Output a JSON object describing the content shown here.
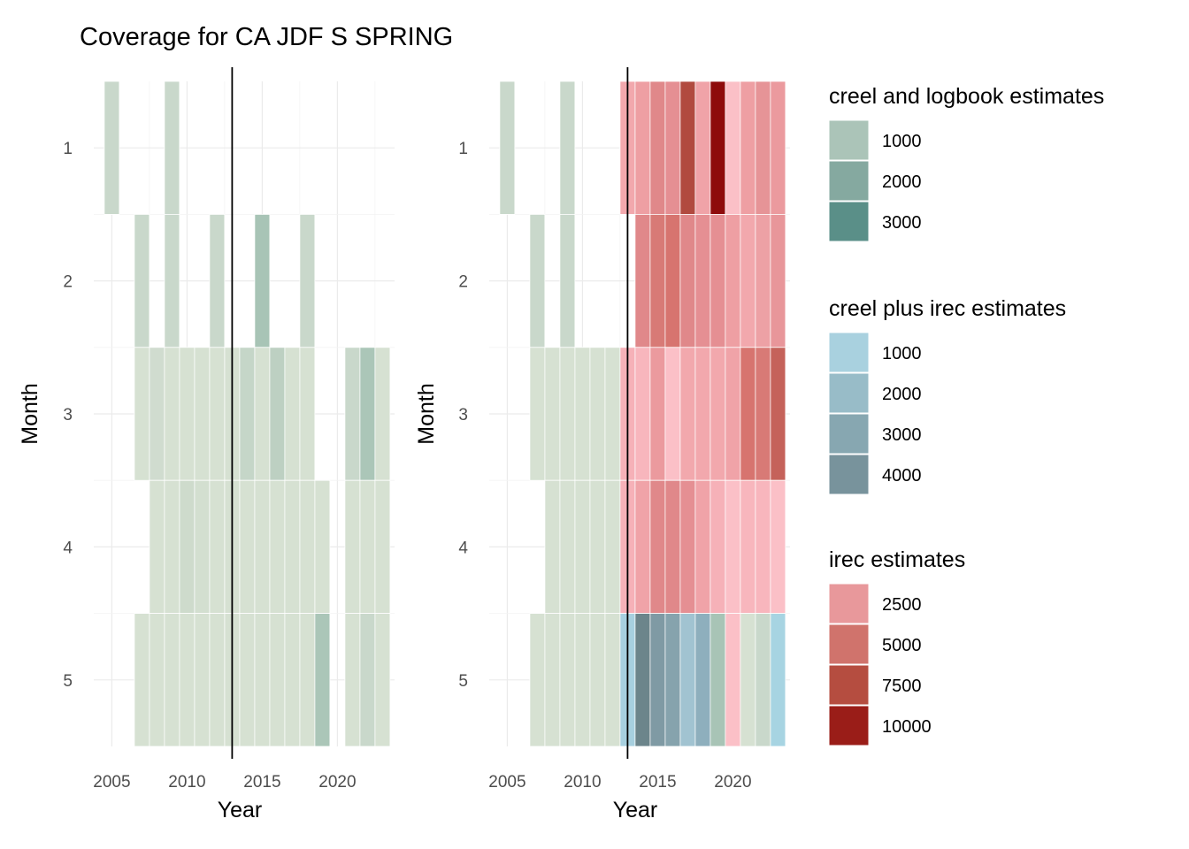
{
  "title": "Coverage for CA JDF S SPRING",
  "chart_data": [
    {
      "type": "heatmap",
      "xlabel": "Year",
      "ylabel": "Month",
      "x_ticks": [
        2005,
        2010,
        2015,
        2020
      ],
      "y_ticks": [
        1,
        2,
        3,
        4,
        5
      ],
      "xlim": [
        2003.8,
        2023.8
      ],
      "ylim": [
        0.5,
        5.5
      ],
      "grid": true,
      "vline": 2013,
      "tiles": [
        {
          "year": 2005,
          "month": 1,
          "color": "#c9d8cb"
        },
        {
          "year": 2009,
          "month": 1,
          "color": "#c9d8cb"
        },
        {
          "year": 2007,
          "month": 2,
          "color": "#c9d8cb"
        },
        {
          "year": 2009,
          "month": 2,
          "color": "#c9d8cb"
        },
        {
          "year": 2012,
          "month": 2,
          "color": "#c9d8cb"
        },
        {
          "year": 2015,
          "month": 2,
          "color": "#a8c4b6"
        },
        {
          "year": 2018,
          "month": 2,
          "color": "#c9d8cb"
        },
        {
          "year": 2007,
          "month": 3,
          "color": "#d6e1d2"
        },
        {
          "year": 2008,
          "month": 3,
          "color": "#d0dccf"
        },
        {
          "year": 2009,
          "month": 3,
          "color": "#d6e1d2"
        },
        {
          "year": 2010,
          "month": 3,
          "color": "#d6e1d2"
        },
        {
          "year": 2011,
          "month": 3,
          "color": "#d6e1d2"
        },
        {
          "year": 2012,
          "month": 3,
          "color": "#d6e1d2"
        },
        {
          "year": 2013,
          "month": 3,
          "color": "#d6e1d2"
        },
        {
          "year": 2014,
          "month": 3,
          "color": "#c5d6c8"
        },
        {
          "year": 2015,
          "month": 3,
          "color": "#d6e1d2"
        },
        {
          "year": 2016,
          "month": 3,
          "color": "#bdd0c2"
        },
        {
          "year": 2017,
          "month": 3,
          "color": "#d6e1d2"
        },
        {
          "year": 2018,
          "month": 3,
          "color": "#d6e1d2"
        },
        {
          "year": 2021,
          "month": 3,
          "color": "#c9d8cb"
        },
        {
          "year": 2022,
          "month": 3,
          "color": "#abc6b8"
        },
        {
          "year": 2023,
          "month": 3,
          "color": "#d6e1d2"
        },
        {
          "year": 2008,
          "month": 4,
          "color": "#d6e1d2"
        },
        {
          "year": 2009,
          "month": 4,
          "color": "#d6e1d2"
        },
        {
          "year": 2010,
          "month": 4,
          "color": "#cedbcc"
        },
        {
          "year": 2011,
          "month": 4,
          "color": "#d3dfd0"
        },
        {
          "year": 2012,
          "month": 4,
          "color": "#d6e1d2"
        },
        {
          "year": 2013,
          "month": 4,
          "color": "#d6e1d2"
        },
        {
          "year": 2014,
          "month": 4,
          "color": "#d6e1d2"
        },
        {
          "year": 2015,
          "month": 4,
          "color": "#d6e1d2"
        },
        {
          "year": 2016,
          "month": 4,
          "color": "#d6e1d2"
        },
        {
          "year": 2017,
          "month": 4,
          "color": "#d6e1d2"
        },
        {
          "year": 2018,
          "month": 4,
          "color": "#d6e1d2"
        },
        {
          "year": 2019,
          "month": 4,
          "color": "#d6e1d2"
        },
        {
          "year": 2021,
          "month": 4,
          "color": "#d6e1d2"
        },
        {
          "year": 2022,
          "month": 4,
          "color": "#d6e1d2"
        },
        {
          "year": 2023,
          "month": 4,
          "color": "#d6e1d2"
        },
        {
          "year": 2007,
          "month": 5,
          "color": "#d6e1d2"
        },
        {
          "year": 2008,
          "month": 5,
          "color": "#d6e1d2"
        },
        {
          "year": 2009,
          "month": 5,
          "color": "#d6e1d2"
        },
        {
          "year": 2010,
          "month": 5,
          "color": "#d6e1d2"
        },
        {
          "year": 2011,
          "month": 5,
          "color": "#d6e1d2"
        },
        {
          "year": 2012,
          "month": 5,
          "color": "#d6e1d2"
        },
        {
          "year": 2013,
          "month": 5,
          "color": "#d6e1d2"
        },
        {
          "year": 2014,
          "month": 5,
          "color": "#d6e1d2"
        },
        {
          "year": 2015,
          "month": 5,
          "color": "#d6e1d2"
        },
        {
          "year": 2016,
          "month": 5,
          "color": "#d6e1d2"
        },
        {
          "year": 2017,
          "month": 5,
          "color": "#d6e1d2"
        },
        {
          "year": 2018,
          "month": 5,
          "color": "#d6e1d2"
        },
        {
          "year": 2019,
          "month": 5,
          "color": "#abc6b8"
        },
        {
          "year": 2021,
          "month": 5,
          "color": "#d6e1d2"
        },
        {
          "year": 2022,
          "month": 5,
          "color": "#c9d8cb"
        },
        {
          "year": 2023,
          "month": 5,
          "color": "#d6e1d2"
        }
      ]
    },
    {
      "type": "heatmap",
      "xlabel": "Year",
      "ylabel": "Month",
      "x_ticks": [
        2005,
        2010,
        2015,
        2020
      ],
      "y_ticks": [
        1,
        2,
        3,
        4,
        5
      ],
      "xlim": [
        2003.8,
        2023.8
      ],
      "ylim": [
        0.5,
        5.5
      ],
      "grid": true,
      "vline": 2013,
      "tiles": [
        {
          "year": 2005,
          "month": 1,
          "color": "#c9d8cb"
        },
        {
          "year": 2009,
          "month": 1,
          "color": "#c9d8cb"
        },
        {
          "year": 2013,
          "month": 1,
          "color": "#f2a8ad"
        },
        {
          "year": 2014,
          "month": 1,
          "color": "#ee9fa3"
        },
        {
          "year": 2015,
          "month": 1,
          "color": "#e0888a"
        },
        {
          "year": 2016,
          "month": 1,
          "color": "#e58f93"
        },
        {
          "year": 2017,
          "month": 1,
          "color": "#b14a3f"
        },
        {
          "year": 2018,
          "month": 1,
          "color": "#f0a3a8"
        },
        {
          "year": 2019,
          "month": 1,
          "color": "#8e0b0b"
        },
        {
          "year": 2020,
          "month": 1,
          "color": "#fbc0c7"
        },
        {
          "year": 2021,
          "month": 1,
          "color": "#ee9fa3"
        },
        {
          "year": 2022,
          "month": 1,
          "color": "#e69497"
        },
        {
          "year": 2023,
          "month": 1,
          "color": "#eb9a9e"
        },
        {
          "year": 2007,
          "month": 2,
          "color": "#c9d8cb"
        },
        {
          "year": 2009,
          "month": 2,
          "color": "#c9d8cb"
        },
        {
          "year": 2014,
          "month": 2,
          "color": "#e0888a"
        },
        {
          "year": 2015,
          "month": 2,
          "color": "#d87a76"
        },
        {
          "year": 2016,
          "month": 2,
          "color": "#d7746f"
        },
        {
          "year": 2017,
          "month": 2,
          "color": "#e0888a"
        },
        {
          "year": 2018,
          "month": 2,
          "color": "#e58f93"
        },
        {
          "year": 2019,
          "month": 2,
          "color": "#e58f93"
        },
        {
          "year": 2020,
          "month": 2,
          "color": "#ee9fa3"
        },
        {
          "year": 2021,
          "month": 2,
          "color": "#f2a8ad"
        },
        {
          "year": 2022,
          "month": 2,
          "color": "#eda1a5"
        },
        {
          "year": 2023,
          "month": 2,
          "color": "#e8969a"
        },
        {
          "year": 2007,
          "month": 3,
          "color": "#d6e1d2"
        },
        {
          "year": 2008,
          "month": 3,
          "color": "#d6e1d2"
        },
        {
          "year": 2009,
          "month": 3,
          "color": "#d6e1d2"
        },
        {
          "year": 2010,
          "month": 3,
          "color": "#d6e1d2"
        },
        {
          "year": 2011,
          "month": 3,
          "color": "#d6e1d2"
        },
        {
          "year": 2012,
          "month": 3,
          "color": "#d6e1d2"
        },
        {
          "year": 2013,
          "month": 3,
          "color": "#f6b1b8"
        },
        {
          "year": 2014,
          "month": 3,
          "color": "#f8b6bd"
        },
        {
          "year": 2015,
          "month": 3,
          "color": "#eb9a9e"
        },
        {
          "year": 2016,
          "month": 3,
          "color": "#fbc0c7"
        },
        {
          "year": 2017,
          "month": 3,
          "color": "#f2a8ad"
        },
        {
          "year": 2018,
          "month": 3,
          "color": "#f2a8ad"
        },
        {
          "year": 2019,
          "month": 3,
          "color": "#f2a8ad"
        },
        {
          "year": 2020,
          "month": 3,
          "color": "#f0a3a8"
        },
        {
          "year": 2021,
          "month": 3,
          "color": "#d7746f"
        },
        {
          "year": 2022,
          "month": 3,
          "color": "#d87a76"
        },
        {
          "year": 2023,
          "month": 3,
          "color": "#c5625a"
        },
        {
          "year": 2008,
          "month": 4,
          "color": "#d6e1d2"
        },
        {
          "year": 2009,
          "month": 4,
          "color": "#d6e1d2"
        },
        {
          "year": 2010,
          "month": 4,
          "color": "#d6e1d2"
        },
        {
          "year": 2011,
          "month": 4,
          "color": "#d6e1d2"
        },
        {
          "year": 2012,
          "month": 4,
          "color": "#d6e1d2"
        },
        {
          "year": 2013,
          "month": 4,
          "color": "#f6b1b8"
        },
        {
          "year": 2014,
          "month": 4,
          "color": "#f0a3a8"
        },
        {
          "year": 2015,
          "month": 4,
          "color": "#e0888a"
        },
        {
          "year": 2016,
          "month": 4,
          "color": "#e0888a"
        },
        {
          "year": 2017,
          "month": 4,
          "color": "#e58f93"
        },
        {
          "year": 2018,
          "month": 4,
          "color": "#f0a3a8"
        },
        {
          "year": 2019,
          "month": 4,
          "color": "#f6b1b8"
        },
        {
          "year": 2020,
          "month": 4,
          "color": "#fbc0c7"
        },
        {
          "year": 2021,
          "month": 4,
          "color": "#f8b6bd"
        },
        {
          "year": 2022,
          "month": 4,
          "color": "#f8b6bd"
        },
        {
          "year": 2023,
          "month": 4,
          "color": "#fbc0c7"
        },
        {
          "year": 2007,
          "month": 5,
          "color": "#d6e1d2"
        },
        {
          "year": 2008,
          "month": 5,
          "color": "#d6e1d2"
        },
        {
          "year": 2009,
          "month": 5,
          "color": "#d6e1d2"
        },
        {
          "year": 2010,
          "month": 5,
          "color": "#d6e1d2"
        },
        {
          "year": 2011,
          "month": 5,
          "color": "#d6e1d2"
        },
        {
          "year": 2012,
          "month": 5,
          "color": "#d6e1d2"
        },
        {
          "year": 2013,
          "month": 5,
          "color": "#a7d0df"
        },
        {
          "year": 2014,
          "month": 5,
          "color": "#6c858b"
        },
        {
          "year": 2015,
          "month": 5,
          "color": "#7f9aa4"
        },
        {
          "year": 2016,
          "month": 5,
          "color": "#86a3ad"
        },
        {
          "year": 2017,
          "month": 5,
          "color": "#a1c3d1"
        },
        {
          "year": 2018,
          "month": 5,
          "color": "#8eafbd"
        },
        {
          "year": 2019,
          "month": 5,
          "color": "#a8c4b6"
        },
        {
          "year": 2020,
          "month": 5,
          "color": "#fbc0c7"
        },
        {
          "year": 2021,
          "month": 5,
          "color": "#d6e1d2"
        },
        {
          "year": 2022,
          "month": 5,
          "color": "#c9d8cb"
        },
        {
          "year": 2023,
          "month": 5,
          "color": "#a7d4e2"
        }
      ]
    }
  ],
  "legends": [
    {
      "title": "creel and logbook estimates",
      "items": [
        {
          "label": "1000",
          "color": "#abc4b8"
        },
        {
          "label": "2000",
          "color": "#85a9a0"
        },
        {
          "label": "3000",
          "color": "#5a8f88"
        }
      ]
    },
    {
      "title": "creel plus irec estimates",
      "items": [
        {
          "label": "1000",
          "color": "#a9d1df"
        },
        {
          "label": "2000",
          "color": "#98bcc8"
        },
        {
          "label": "3000",
          "color": "#87a7b1"
        },
        {
          "label": "4000",
          "color": "#78939c"
        }
      ]
    },
    {
      "title": "irec estimates",
      "items": [
        {
          "label": "2500",
          "color": "#e8989b"
        },
        {
          "label": "5000",
          "color": "#d0736c"
        },
        {
          "label": "7500",
          "color": "#b54d40"
        },
        {
          "label": "10000",
          "color": "#9a1d18"
        }
      ]
    }
  ]
}
